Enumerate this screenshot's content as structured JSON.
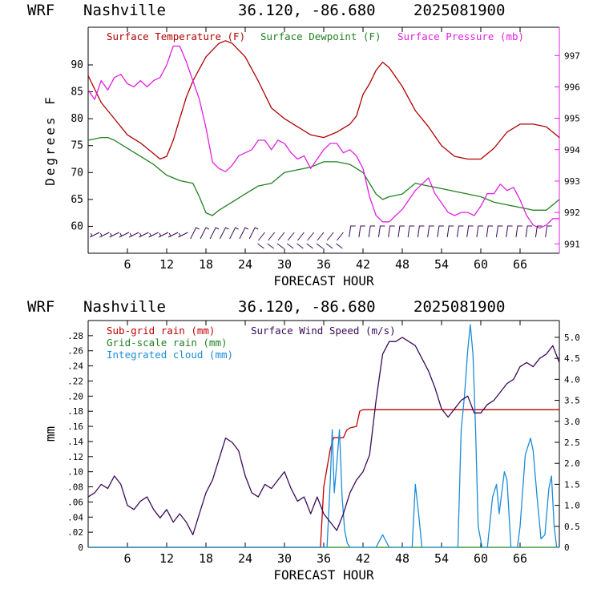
{
  "header": {
    "model": "WRF",
    "location": "Nashville",
    "coords": "36.120, -86.680",
    "date": "2025081900"
  },
  "colors": {
    "temperature": "#b00000",
    "dewpoint": "#208020",
    "pressure": "#e020e0",
    "subgrid_rain": "#c00000",
    "gridscale_rain": "#208020",
    "cloud": "#1c8cd8",
    "wind": "#3a0a5a",
    "barbs": "#3a0a5a"
  },
  "chart_data": [
    {
      "type": "line",
      "x_axis": {
        "label": "FORECAST HOUR",
        "range": [
          0,
          72
        ],
        "ticks": [
          6,
          12,
          18,
          24,
          30,
          36,
          42,
          48,
          54,
          60,
          66
        ],
        "tick_labels": [
          "6",
          "12",
          "18",
          "24",
          "30",
          "36",
          "42",
          "48",
          "54",
          "60",
          "66"
        ]
      },
      "y_axis_left": {
        "label": "Degrees F",
        "range": [
          55,
          97
        ],
        "ticks": [
          60,
          65,
          70,
          75,
          80,
          85,
          90
        ]
      },
      "y_axis_right": {
        "range": [
          990.7,
          997.9
        ],
        "ticks": [
          991,
          992,
          993,
          994,
          995,
          996,
          997
        ]
      },
      "grid": false,
      "legend_position": "top",
      "series": [
        {
          "name": "Surface Temperature (F)",
          "axis": "left",
          "x": [
            0,
            2,
            4,
            6,
            8,
            10,
            11,
            12,
            13,
            14,
            15,
            16,
            18,
            20,
            21,
            22,
            24,
            26,
            28,
            30,
            32,
            34,
            36,
            38,
            40,
            41,
            42,
            43,
            44,
            45,
            46,
            48,
            50,
            52,
            54,
            56,
            58,
            60,
            62,
            64,
            66,
            68,
            70,
            72
          ],
          "y": [
            88,
            83,
            80,
            77,
            75.5,
            73.5,
            72.5,
            73,
            76,
            80,
            84,
            87,
            91.5,
            94,
            94.5,
            94,
            91.5,
            87,
            82,
            80,
            78.5,
            77,
            76.5,
            77.5,
            79,
            80.5,
            84.5,
            86.5,
            89,
            90.5,
            89.5,
            86,
            81.5,
            78.5,
            75,
            73,
            72.5,
            72.5,
            74.5,
            77.5,
            79,
            79,
            78.5,
            76.5
          ]
        },
        {
          "name": "Surface Dewpoint (F)",
          "axis": "left",
          "x": [
            0,
            2,
            3,
            4,
            6,
            8,
            10,
            12,
            14,
            16,
            17,
            18,
            19,
            20,
            22,
            24,
            26,
            28,
            30,
            32,
            34,
            36,
            38,
            40,
            42,
            44,
            45,
            46,
            48,
            50,
            52,
            54,
            56,
            58,
            60,
            62,
            64,
            66,
            68,
            70,
            72
          ],
          "y": [
            76,
            76.5,
            76.5,
            76,
            74.5,
            73,
            71.5,
            69.5,
            68.5,
            68,
            65.5,
            62.5,
            62,
            63,
            64.5,
            66,
            67.5,
            68,
            70,
            70.5,
            71,
            72,
            72,
            71.5,
            70,
            66,
            65,
            65.5,
            66,
            68,
            67.5,
            67,
            66.5,
            66,
            65.5,
            64.5,
            64,
            63.5,
            63,
            63,
            65
          ]
        },
        {
          "name": "Surface Pressure (mb)",
          "axis": "right",
          "x": [
            0,
            1,
            2,
            3,
            4,
            5,
            6,
            7,
            8,
            9,
            10,
            11,
            12,
            13,
            14,
            15,
            16,
            17,
            18,
            19,
            20,
            21,
            22,
            23,
            24,
            25,
            26,
            27,
            28,
            29,
            30,
            31,
            32,
            33,
            34,
            35,
            36,
            37,
            38,
            39,
            40,
            41,
            42,
            43,
            44,
            45,
            46,
            47,
            48,
            49,
            50,
            51,
            52,
            53,
            54,
            55,
            56,
            57,
            58,
            59,
            60,
            61,
            62,
            63,
            64,
            65,
            66,
            67,
            68,
            69,
            70,
            71,
            72
          ],
          "y": [
            995.9,
            995.6,
            996.2,
            995.9,
            996.3,
            996.4,
            996.1,
            996.0,
            996.2,
            996.0,
            996.2,
            996.3,
            996.7,
            997.3,
            997.3,
            996.8,
            996.2,
            995.6,
            994.7,
            993.6,
            993.4,
            993.3,
            993.5,
            993.8,
            993.9,
            994.0,
            994.3,
            994.3,
            994.0,
            994.3,
            994.2,
            993.9,
            993.7,
            993.8,
            993.4,
            993.7,
            994.0,
            994.2,
            994.2,
            993.9,
            994.0,
            993.8,
            993.4,
            992.5,
            991.9,
            991.7,
            991.7,
            991.9,
            992.1,
            992.4,
            992.7,
            992.9,
            993.1,
            992.6,
            992.3,
            992.0,
            991.9,
            992.0,
            992.0,
            991.9,
            992.2,
            992.6,
            992.6,
            992.9,
            992.7,
            992.8,
            992.4,
            991.9,
            991.6,
            991.5,
            991.6,
            991.8,
            991.8
          ]
        }
      ]
    },
    {
      "type": "line",
      "x_axis": {
        "label": "FORECAST HOUR",
        "range": [
          0,
          72
        ],
        "ticks": [
          6,
          12,
          18,
          24,
          30,
          36,
          42,
          48,
          54,
          60,
          66
        ],
        "tick_labels": [
          "6",
          "12",
          "18",
          "24",
          "30",
          "36",
          "42",
          "48",
          "54",
          "60",
          "66"
        ]
      },
      "y_axis_left": {
        "label": "mm",
        "range": [
          0,
          0.3
        ],
        "ticks": [
          0,
          0.02,
          0.04,
          0.06,
          0.08,
          0.1,
          0.12,
          0.14,
          0.16,
          0.18,
          0.2,
          0.22,
          0.24,
          0.26,
          0.28
        ],
        "tick_labels": [
          "0",
          ".02",
          ".04",
          ".06",
          ".08",
          ".10",
          ".12",
          ".14",
          ".16",
          ".18",
          ".20",
          ".22",
          ".24",
          ".26",
          ".28"
        ]
      },
      "y_axis_right": {
        "range": [
          0,
          5.4
        ],
        "ticks": [
          0,
          0.5,
          1.0,
          1.5,
          2.0,
          2.5,
          3.0,
          3.5,
          4.0,
          4.5,
          5.0
        ],
        "tick_labels": [
          "0",
          "0.5",
          "1.0",
          "1.5",
          "2.0",
          "2.5",
          "3.0",
          "3.5",
          "4.0",
          "4.5",
          "5.0"
        ]
      },
      "grid": false,
      "legend_position": "top",
      "series": [
        {
          "name": "Sub-grid rain (mm)",
          "axis": "left",
          "x": [
            0,
            35.5,
            36,
            37,
            37.5,
            39,
            39.5,
            40,
            41,
            41.5,
            42,
            72
          ],
          "y": [
            0,
            0,
            0.08,
            0.13,
            0.145,
            0.145,
            0.155,
            0.158,
            0.16,
            0.18,
            0.182,
            0.182
          ]
        },
        {
          "name": "Grid-scale rain (mm)",
          "axis": "left",
          "x": [
            0,
            72
          ],
          "y": [
            0,
            0
          ]
        },
        {
          "name": "Integrated cloud (mm)",
          "axis": "right",
          "x": [
            0,
            36.5,
            37,
            37.3,
            37.6,
            38,
            38.4,
            38.8,
            39.2,
            39.6,
            40,
            44,
            45,
            46,
            49.5,
            50,
            50.5,
            51,
            56.5,
            57,
            57.5,
            58,
            58.4,
            58.8,
            59.2,
            59.6,
            60.2,
            61,
            61.8,
            62.4,
            62.8,
            63.2,
            63.6,
            64,
            64.6,
            65.6,
            66,
            66.8,
            67.6,
            68,
            68.6,
            69.2,
            69.8,
            70.4,
            70.8,
            71.2,
            71.6,
            72
          ],
          "y": [
            0,
            0,
            1.6,
            2.8,
            1.3,
            2.0,
            2.8,
            1.2,
            0.4,
            0.1,
            0,
            0,
            0.3,
            0,
            0,
            1.5,
            0.8,
            0,
            0,
            2.8,
            3.6,
            4.7,
            5.3,
            4.6,
            2.8,
            0.5,
            0,
            0,
            1.2,
            1.5,
            0.8,
            1.3,
            1.8,
            1.6,
            0,
            0,
            0.5,
            2.2,
            2.6,
            2.3,
            1.2,
            0.2,
            0.3,
            1.4,
            1.7,
            0.5,
            0,
            0
          ]
        },
        {
          "name": "Surface Wind Speed (m/s)",
          "axis": "right",
          "x": [
            0,
            1,
            2,
            3,
            4,
            5,
            6,
            7,
            8,
            9,
            10,
            11,
            12,
            13,
            14,
            15,
            16,
            17,
            18,
            19,
            20,
            21,
            22,
            23,
            24,
            25,
            26,
            27,
            28,
            29,
            30,
            31,
            32,
            33,
            34,
            35,
            36,
            37,
            38,
            39,
            40,
            41,
            42,
            43,
            44,
            45,
            46,
            47,
            48,
            49,
            50,
            51,
            52,
            53,
            54,
            55,
            56,
            57,
            58,
            59,
            60,
            61,
            62,
            63,
            64,
            65,
            66,
            67,
            68,
            69,
            70,
            71,
            72
          ],
          "y": [
            1.2,
            1.3,
            1.5,
            1.4,
            1.7,
            1.5,
            1.0,
            0.9,
            1.1,
            1.2,
            0.9,
            0.7,
            0.9,
            0.6,
            0.8,
            0.6,
            0.3,
            0.8,
            1.3,
            1.6,
            2.1,
            2.6,
            2.5,
            2.3,
            1.7,
            1.3,
            1.2,
            1.5,
            1.4,
            1.6,
            1.8,
            1.4,
            1.1,
            1.2,
            0.8,
            1.2,
            0.8,
            0.6,
            0.4,
            0.8,
            1.3,
            1.6,
            1.8,
            2.2,
            3.5,
            4.6,
            4.9,
            4.9,
            5.0,
            4.9,
            4.8,
            4.5,
            4.2,
            3.8,
            3.3,
            3.1,
            3.3,
            3.5,
            3.6,
            3.2,
            3.2,
            3.4,
            3.5,
            3.7,
            3.9,
            4.0,
            4.3,
            4.4,
            4.3,
            4.5,
            4.6,
            4.8,
            4.4
          ]
        }
      ]
    }
  ]
}
